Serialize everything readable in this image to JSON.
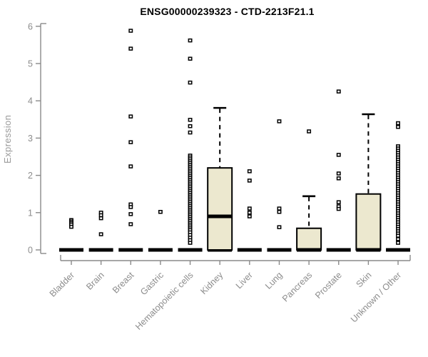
{
  "chart_data": {
    "type": "boxplot",
    "title": "ENSG00000239323 - CTD-2213F21.1",
    "ylabel": "Expression",
    "xlabel": "",
    "ylim": [
      0,
      6
    ],
    "yticks": [
      0,
      1,
      2,
      3,
      4,
      5,
      6
    ],
    "grid": false,
    "legend": "none",
    "colors": {
      "box_fill": "#ece8cf",
      "box_stroke": "#000000",
      "outlier_fill": "#ffffff",
      "axis": "#8a8a8a",
      "tick_label": "#8c8c8c",
      "title": "#000000"
    },
    "categories": [
      "Bladder",
      "Brain",
      "Breast",
      "Gastric",
      "Hematopoietic cells",
      "Kidney",
      "Liver",
      "Lung",
      "Pancreas",
      "Prostate",
      "Skin",
      "Unknown / Other"
    ],
    "boxes": [
      {
        "label": "Bladder",
        "q1": 0,
        "median": 0,
        "q3": 0,
        "whisker_high": 0,
        "outliers": [
          0.8,
          0.76,
          0.72,
          0.68,
          0.62
        ]
      },
      {
        "label": "Brain",
        "q1": 0,
        "median": 0,
        "q3": 0,
        "whisker_high": 0,
        "outliers": [
          1.0,
          0.93,
          0.85,
          0.42
        ]
      },
      {
        "label": "Breast",
        "q1": 0,
        "median": 0,
        "q3": 0,
        "whisker_high": 0,
        "outliers": [
          5.88,
          5.4,
          3.58,
          2.89,
          2.24,
          1.22,
          1.15,
          0.96,
          0.69
        ]
      },
      {
        "label": "Gastric",
        "q1": 0,
        "median": 0,
        "q3": 0,
        "whisker_high": 0,
        "outliers": [
          1.02
        ]
      },
      {
        "label": "Hematopoietic cells",
        "q1": 0,
        "median": 0,
        "q3": 0,
        "whisker_high": 0,
        "outliers": [
          5.62,
          5.13,
          4.49,
          3.49,
          3.32,
          3.15,
          2.53,
          2.48,
          2.43,
          2.38,
          2.33,
          2.28,
          2.23,
          2.18,
          2.13,
          2.08,
          2.03,
          1.98,
          1.93,
          1.88,
          1.83,
          1.78,
          1.73,
          1.68,
          1.63,
          1.58,
          1.53,
          1.48,
          1.43,
          1.38,
          1.33,
          1.28,
          1.23,
          1.18,
          1.13,
          1.08,
          1.03,
          0.98,
          0.93,
          0.88,
          0.83,
          0.78,
          0.73,
          0.68,
          0.63,
          0.58,
          0.53,
          0.47,
          0.4,
          0.33,
          0.26,
          0.19
        ]
      },
      {
        "label": "Kidney",
        "q1": 0,
        "median": 0.9,
        "q3": 2.2,
        "whisker_high": 3.81,
        "outliers": []
      },
      {
        "label": "Liver",
        "q1": 0,
        "median": 0,
        "q3": 0,
        "whisker_high": 0,
        "outliers": [
          2.11,
          1.86,
          1.11,
          1.0,
          0.9
        ]
      },
      {
        "label": "Lung",
        "q1": 0,
        "median": 0,
        "q3": 0,
        "whisker_high": 0,
        "outliers": [
          3.45,
          1.11,
          1.02,
          0.61
        ]
      },
      {
        "label": "Pancreas",
        "q1": 0,
        "median": 0,
        "q3": 0.58,
        "whisker_high": 1.44,
        "outliers": [
          3.18
        ]
      },
      {
        "label": "Prostate",
        "q1": 0,
        "median": 0,
        "q3": 0,
        "whisker_high": 0,
        "outliers": [
          4.25,
          2.55,
          2.05,
          1.92,
          1.28,
          1.17,
          1.1
        ]
      },
      {
        "label": "Skin",
        "q1": 0,
        "median": 0,
        "q3": 1.5,
        "whisker_high": 3.64,
        "outliers": []
      },
      {
        "label": "Unknown / Other",
        "q1": 0,
        "median": 0,
        "q3": 0,
        "whisker_high": 0,
        "outliers": [
          3.4,
          3.3,
          2.78,
          2.72,
          2.66,
          2.6,
          2.54,
          2.48,
          2.42,
          2.36,
          2.3,
          2.24,
          2.18,
          2.12,
          2.06,
          2.0,
          1.94,
          1.88,
          1.82,
          1.76,
          1.7,
          1.64,
          1.58,
          1.52,
          1.46,
          1.4,
          1.34,
          1.28,
          1.22,
          1.16,
          1.1,
          1.04,
          0.98,
          0.92,
          0.86,
          0.8,
          0.74,
          0.68,
          0.62,
          0.56,
          0.5,
          0.44,
          0.38,
          0.29,
          0.19
        ]
      }
    ]
  }
}
